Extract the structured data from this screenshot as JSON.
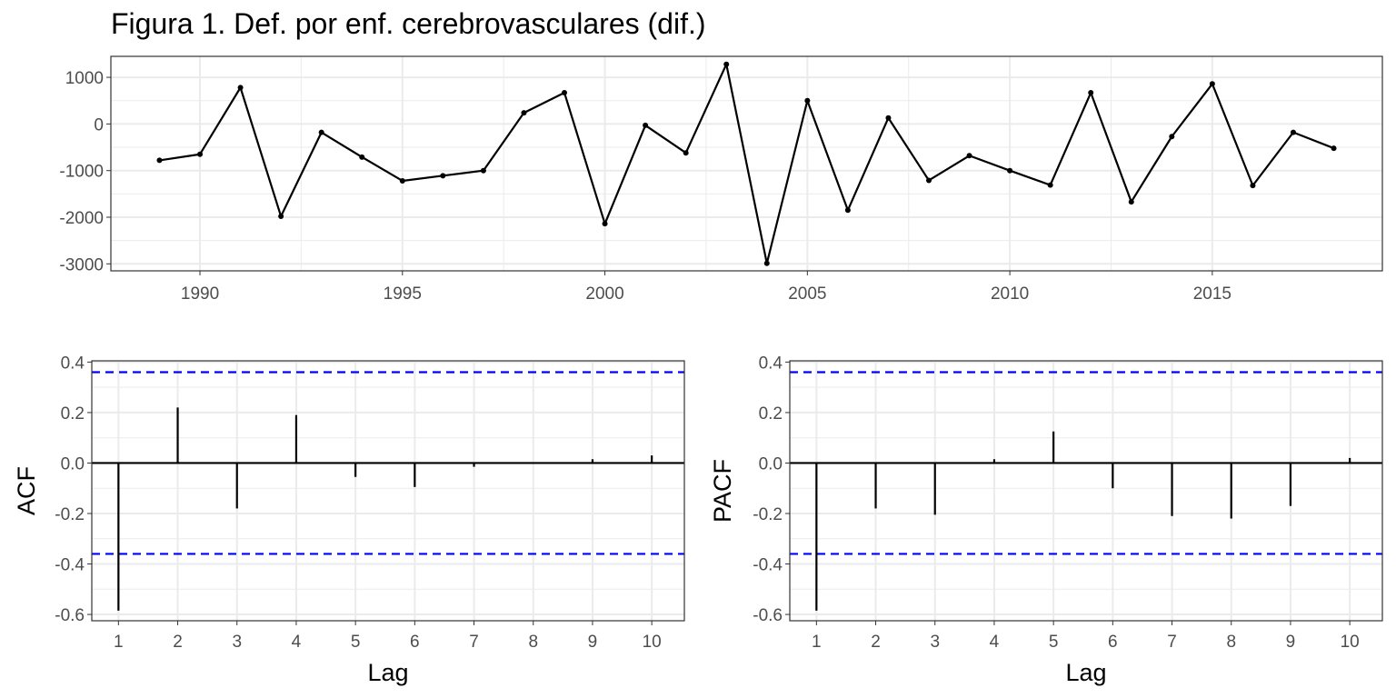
{
  "title": "Figura 1. Def. por enf. cerebrovasculares (dif.)",
  "colors": {
    "series": "#000000",
    "ci": "#0000ff",
    "grid": "#ebebeb",
    "frame": "#333333"
  },
  "chart_data": [
    {
      "type": "line",
      "grid": true,
      "x": [
        1989,
        1990,
        1991,
        1992,
        1993,
        1994,
        1995,
        1996,
        1997,
        1998,
        1999,
        2000,
        2001,
        2002,
        2003,
        2004,
        2005,
        2006,
        2007,
        2008,
        2009,
        2010,
        2011,
        2012,
        2013,
        2014,
        2015,
        2016,
        2017,
        2018
      ],
      "y": [
        -780,
        -650,
        780,
        -1980,
        -180,
        -710,
        -1220,
        -1110,
        -1000,
        240,
        670,
        -2140,
        -30,
        -620,
        1280,
        -2990,
        500,
        -1850,
        130,
        -1210,
        -680,
        -1000,
        -1310,
        670,
        -1670,
        -270,
        860,
        -1320,
        -180,
        -520
      ],
      "xlim": [
        1987.8,
        2019.2
      ],
      "ylim": [
        -3150,
        1450
      ],
      "xticks": [
        "1990",
        "1995",
        "2000",
        "2005",
        "2010",
        "2015"
      ],
      "yticks": [
        "1000",
        "0",
        "-1000",
        "-2000",
        "-3000"
      ],
      "xlabel": "",
      "ylabel": ""
    },
    {
      "type": "bar",
      "grid": true,
      "categories": [
        "1",
        "2",
        "3",
        "4",
        "5",
        "6",
        "7",
        "8",
        "9",
        "10"
      ],
      "values": [
        -0.585,
        0.22,
        -0.18,
        0.19,
        -0.055,
        -0.095,
        -0.015,
        0.0,
        0.015,
        0.03
      ],
      "ci": 0.36,
      "ylim": [
        -0.625,
        0.405
      ],
      "yticks": [
        "0.4",
        "0.2",
        "0.0",
        "-0.2",
        "-0.4",
        "-0.6"
      ],
      "xlabel": "Lag",
      "ylabel": "ACF"
    },
    {
      "type": "bar",
      "grid": true,
      "categories": [
        "1",
        "2",
        "3",
        "4",
        "5",
        "6",
        "7",
        "8",
        "9",
        "10"
      ],
      "values": [
        -0.585,
        -0.18,
        -0.205,
        0.015,
        0.125,
        -0.1,
        -0.21,
        -0.22,
        -0.17,
        0.02
      ],
      "ci": 0.36,
      "ylim": [
        -0.625,
        0.405
      ],
      "yticks": [
        "0.4",
        "0.2",
        "0.0",
        "-0.2",
        "-0.4",
        "-0.6"
      ],
      "xlabel": "Lag",
      "ylabel": "PACF"
    }
  ]
}
